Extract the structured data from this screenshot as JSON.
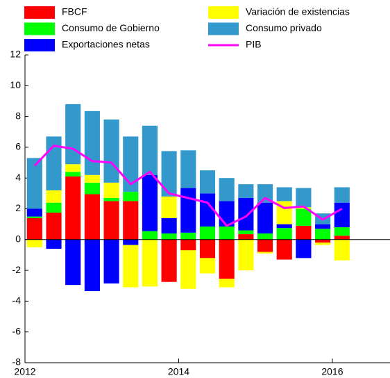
{
  "chart_data": {
    "type": "bar",
    "x": [
      2012.125,
      2012.375,
      2012.625,
      2012.875,
      2013.125,
      2013.375,
      2013.625,
      2013.875,
      2014.125,
      2014.375,
      2014.625,
      2014.875,
      2015.125,
      2015.375,
      2015.625,
      2015.875,
      2016.125
    ],
    "series": [
      {
        "name": "FBCF",
        "color": "#ff0000",
        "values": [
          1.4,
          1.75,
          4.1,
          2.95,
          2.5,
          2.5,
          0,
          -2.75,
          -0.7,
          -1.2,
          -2.55,
          0.35,
          -0.8,
          -1.3,
          0.9,
          -0.2,
          0.25
        ]
      },
      {
        "name": "Consumo de Gobierno",
        "color": "#00ff00",
        "values": [
          0.1,
          0.65,
          0.3,
          0.75,
          0.2,
          0.6,
          0.55,
          0.4,
          0.45,
          0.85,
          0.85,
          0.25,
          0.4,
          0.75,
          1.1,
          0.7,
          0.55
        ]
      },
      {
        "name": "Exportaciones netas",
        "color": "#0000ff",
        "values": [
          0.5,
          -0.6,
          -2.95,
          -3.35,
          -2.85,
          -0.35,
          3.65,
          1.0,
          2.9,
          2.15,
          1.65,
          2.1,
          2.0,
          0.25,
          -1.2,
          0.3,
          1.6
        ]
      },
      {
        "name": "Variación de existencias",
        "color": "#ffff00",
        "values": [
          -0.5,
          0.8,
          0.5,
          0.5,
          1.0,
          -2.75,
          -3.05,
          1.4,
          -2.5,
          -1.0,
          -0.55,
          -2.0,
          -0.1,
          1.5,
          0.1,
          -0.15,
          -1.35
        ]
      },
      {
        "name": "Consumo privado",
        "color": "#3399cc",
        "values": [
          3.3,
          3.5,
          3.9,
          4.15,
          4.1,
          3.6,
          3.2,
          2.95,
          2.45,
          1.5,
          1.5,
          0.9,
          1.2,
          0.9,
          1.25,
          0.7,
          1.0
        ]
      },
      {
        "name": "PIB",
        "color": "#ff00ff",
        "type": "line",
        "values": [
          4.8,
          6.1,
          5.9,
          5.1,
          5.0,
          3.6,
          4.4,
          3.0,
          2.7,
          2.4,
          0.9,
          1.5,
          2.7,
          2.05,
          2.15,
          1.3,
          2.0
        ]
      }
    ],
    "xlim": [
      2012,
      2016.75
    ],
    "xticks": [
      2012,
      2014,
      2016
    ],
    "ylim": [
      -8,
      12
    ],
    "yticks": [
      -8,
      -6,
      -4,
      -2,
      0,
      2,
      4,
      6,
      8,
      10,
      12
    ]
  }
}
